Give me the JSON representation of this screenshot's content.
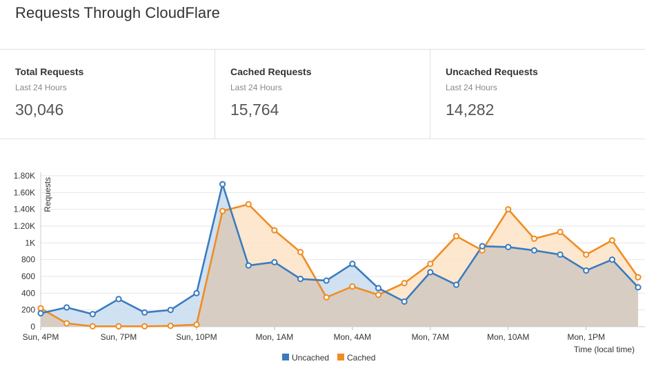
{
  "header": {
    "title": "Requests Through CloudFlare"
  },
  "stats": [
    {
      "title": "Total Requests",
      "period": "Last 24 Hours",
      "value": "30,046"
    },
    {
      "title": "Cached Requests",
      "period": "Last 24 Hours",
      "value": "15,764"
    },
    {
      "title": "Uncached Requests",
      "period": "Last 24 Hours",
      "value": "14,282"
    }
  ],
  "colors": {
    "uncached": "#3a7bbf",
    "cached": "#f08c22",
    "uncached_fill": "#c8dcef",
    "cached_fill": "#fde3c6",
    "overlap_fill": "#d8cdc2"
  },
  "chart_data": {
    "type": "area",
    "ylabel": "Requests",
    "xlabel": "Time (local time)",
    "ylim": [
      0,
      1800
    ],
    "yticks": [
      0,
      200,
      400,
      600,
      800,
      1000,
      1200,
      1400,
      1600,
      1800
    ],
    "ytick_labels": [
      "0",
      "200",
      "400",
      "600",
      "800",
      "1K",
      "1.20K",
      "1.40K",
      "1.60K",
      "1.80K"
    ],
    "xtick_labels": [
      "Sun, 4PM",
      "Sun, 7PM",
      "Sun, 10PM",
      "Mon, 1AM",
      "Mon, 4AM",
      "Mon, 7AM",
      "Mon, 10AM",
      "Mon, 1PM"
    ],
    "xtick_positions": [
      0,
      3,
      6,
      9,
      12,
      15,
      18,
      21
    ],
    "grid": true,
    "legend_position": "bottom-center",
    "series": [
      {
        "name": "Uncached",
        "values": [
          160,
          230,
          150,
          330,
          170,
          200,
          400,
          1700,
          730,
          770,
          570,
          550,
          750,
          460,
          300,
          650,
          500,
          960,
          950,
          910,
          860,
          670,
          800,
          470
        ]
      },
      {
        "name": "Cached",
        "values": [
          220,
          40,
          5,
          5,
          5,
          10,
          25,
          1380,
          1460,
          1150,
          890,
          350,
          480,
          380,
          520,
          750,
          1080,
          910,
          1400,
          1050,
          1130,
          860,
          1030,
          590
        ]
      }
    ]
  }
}
